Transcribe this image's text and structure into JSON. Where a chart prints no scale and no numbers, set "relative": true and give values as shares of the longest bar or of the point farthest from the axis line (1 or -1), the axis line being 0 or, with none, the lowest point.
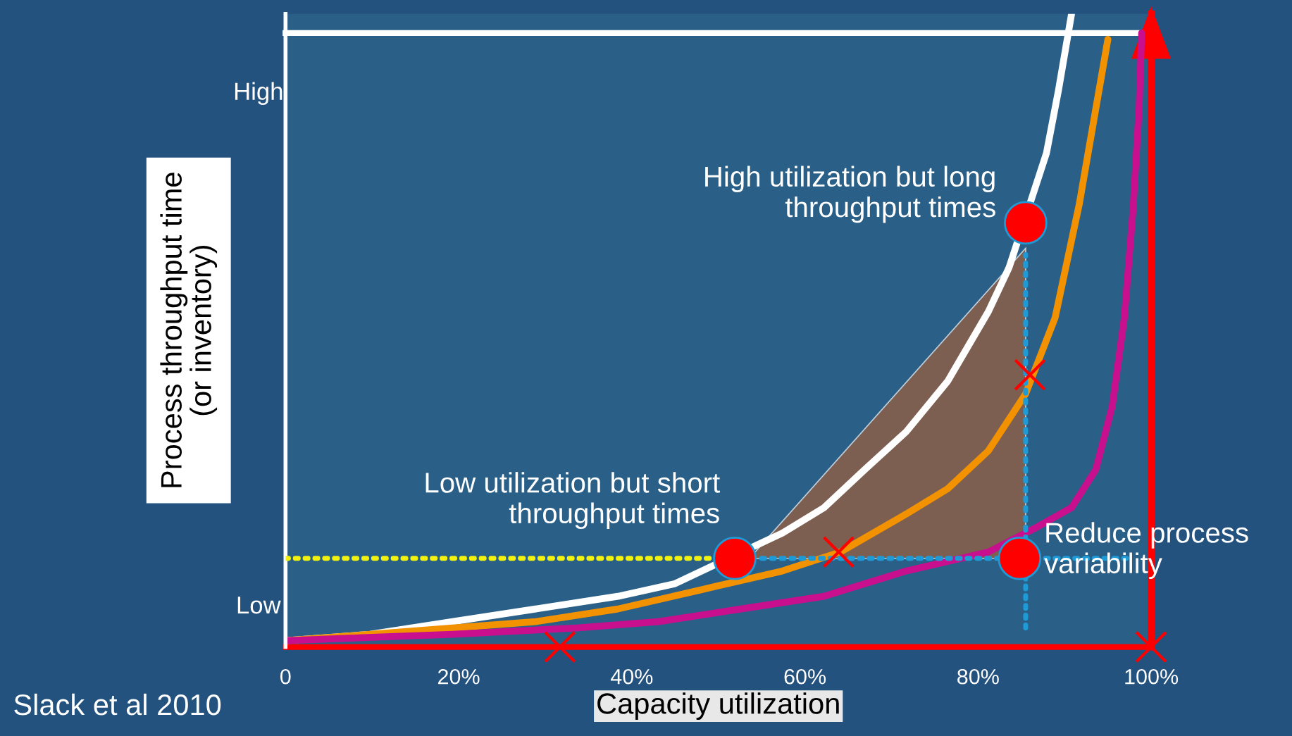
{
  "chart_data": {
    "type": "line",
    "relative": true,
    "xlabel": "Capacity utilization",
    "ylabel": "Process throughput time\n(or inventory)",
    "xlim": [
      0,
      100
    ],
    "xticks": [
      0,
      {
        "value": 20,
        "label": "20%"
      },
      {
        "value": 40,
        "label": "40%"
      },
      {
        "value": 60,
        "label": "60%"
      },
      {
        "value": 80,
        "label": "80%"
      },
      {
        "value": 100,
        "label": "100%"
      }
    ],
    "grid": false,
    "legend": false,
    "ref_lines": [
      {
        "axis": "y",
        "value": 0.97,
        "color": "#ffffff"
      },
      {
        "axis": "y",
        "value": 0,
        "color": "#ff0000"
      },
      {
        "axis": "x",
        "value": 100,
        "color": "#ff0000"
      }
    ],
    "series": [
      {
        "color": "#ffffff",
        "x": [
          0,
          9.8,
          19.3,
          28.9,
          38.4,
          45.0,
          57.4,
          62.2,
          66.9,
          71.7,
          76.5,
          81.2,
          83.6,
          87.9,
          89.3,
          90.8
        ],
        "values": [
          0.01,
          0.02,
          0.04,
          0.06,
          0.08,
          0.1,
          0.18,
          0.22,
          0.28,
          0.34,
          0.42,
          0.53,
          0.6,
          0.78,
          0.88,
          1.0
        ]
      },
      {
        "color": "#f39200",
        "x": [
          0,
          9.8,
          19.3,
          28.9,
          38.4,
          47.9,
          57.4,
          64.1,
          71.7,
          76.5,
          81.2,
          85.5,
          88.9,
          91.7,
          93.6,
          95.0
        ],
        "values": [
          0.01,
          0.02,
          0.03,
          0.04,
          0.06,
          0.09,
          0.12,
          0.15,
          0.21,
          0.25,
          0.31,
          0.4,
          0.52,
          0.7,
          0.85,
          0.96
        ]
      },
      {
        "color": "#c8108f",
        "x": [
          0,
          19.3,
          33.6,
          43.1,
          52.6,
          62.2,
          71.7,
          81.2,
          86.9,
          90.8,
          93.6,
          95.5,
          96.9,
          97.9,
          98.6,
          98.9
        ],
        "values": [
          0.01,
          0.02,
          0.03,
          0.04,
          0.06,
          0.08,
          0.12,
          0.15,
          0.19,
          0.22,
          0.28,
          0.38,
          0.52,
          0.69,
          0.85,
          0.97
        ]
      },
      {
        "color": "#f2f20f",
        "line_style": "dotted",
        "x": [
          0,
          49.0
        ],
        "values": [
          0.14,
          0.14
        ]
      },
      {
        "color": "#1e9bd7",
        "line_style": "dotted",
        "x": [
          55.0,
          97.4
        ],
        "values": [
          0.14,
          0.14
        ]
      },
      {
        "color": "#1e9bd7",
        "line_style": "dotted",
        "x": [
          85.5,
          85.5
        ],
        "values": [
          0.03,
          0.62
        ]
      },
      {
        "type": "scatter",
        "color": "#ff0000",
        "marker": "circle",
        "x": [
          51.9,
          85.5,
          84.8
        ],
        "values": [
          0.14,
          0.67,
          0.14
        ]
      },
      {
        "type": "scatter",
        "color": "#ff0000",
        "marker": "cross",
        "x": [
          63.9,
          86.0,
          31.7,
          100
        ],
        "values": [
          0.15,
          0.43,
          0,
          0
        ]
      }
    ],
    "annotations": [
      {
        "text": "High utilization but long\nthroughput times",
        "x": 85.5,
        "y": 0.67
      },
      {
        "text": "Low utilization but short\nthroughput times",
        "x": 51.9,
        "y": 0.14
      },
      {
        "text": "Reduce process\nvariability",
        "x": 84.8,
        "y": 0.14
      },
      "High",
      "Low",
      "Slack et al 2010"
    ]
  }
}
